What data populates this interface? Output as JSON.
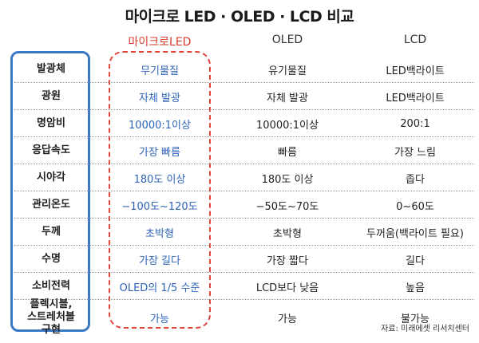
{
  "title": "마이크로 LED · OLED · LCD 비교",
  "headers": {
    "micro": "마이크로LED",
    "oled": "OLED",
    "lcd": "LCD"
  },
  "rows": [
    {
      "category": "발광체",
      "micro": "무기물질",
      "oled": "유기물질",
      "lcd": "LED백라이트"
    },
    {
      "category": "광원",
      "micro": "자체 발광",
      "oled": "자체 발광",
      "lcd": "LED백라이트"
    },
    {
      "category": "명암비",
      "micro": "10000:1이상",
      "oled": "10000:1이상",
      "lcd": "200:1"
    },
    {
      "category": "응답속도",
      "micro": "가장 빠름",
      "oled": "빠름",
      "lcd": "가장 느림"
    },
    {
      "category": "시야각",
      "micro": "180도 이상",
      "oled": "180도 이상",
      "lcd": "좁다"
    },
    {
      "category": "관리온도",
      "micro": "−100도~120도",
      "oled": "−50도~70도",
      "lcd": "0~60도"
    },
    {
      "category": "두께",
      "micro": "초박형",
      "oled": "초박형",
      "lcd": "두꺼움(백라이트 필요)"
    },
    {
      "category": "수명",
      "micro": "가장 길다",
      "oled": "가장 짧다",
      "lcd": "길다"
    },
    {
      "category": "소비전력",
      "micro": "OLED의 1/5 수준",
      "oled": "LCD보다 낮음",
      "lcd": "높음"
    },
    {
      "category": "플렉시블,\n스트레처블\n구현",
      "micro": "가능",
      "oled": "가능",
      "lcd": "불가능"
    }
  ],
  "source": "자료: 미래에셋 리서치센터",
  "colors": {
    "accent_blue": "#3a77c4",
    "micro_red": "#d93a2b",
    "micro_text": "#2d63b8"
  }
}
